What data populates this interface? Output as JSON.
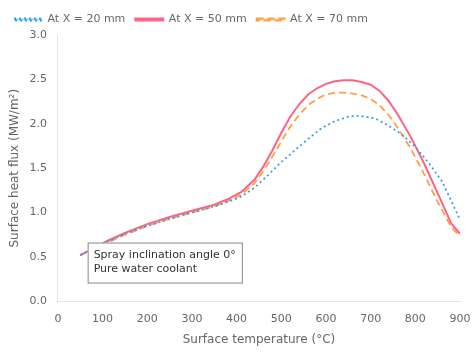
{
  "chart_data": {
    "type": "line",
    "xlabel": "Surface temperature (°C)",
    "ylabel": "Surface heat flux (MW/m²)",
    "xlim": [
      0,
      900
    ],
    "ylim": [
      0.0,
      3.0
    ],
    "xticks": [
      0,
      100,
      200,
      300,
      400,
      500,
      600,
      700,
      800,
      900
    ],
    "yticks": [
      {
        "value": 0.0,
        "label": "0.0"
      },
      {
        "value": 0.5,
        "label": "0.5"
      },
      {
        "value": 1.0,
        "label": "1.0"
      },
      {
        "value": 1.5,
        "label": "1.5"
      },
      {
        "value": 2.0,
        "label": "2.0"
      },
      {
        "value": 2.5,
        "label": "2.5"
      },
      {
        "value": 3.0,
        "label": "3.0"
      }
    ],
    "grid": false,
    "legend": "upper left",
    "annotations": [
      {
        "x": 80,
        "y": 0.28,
        "text": [
          "Spray inclination angle 0°",
          "Pure water coolant"
        ]
      }
    ],
    "series": [
      {
        "name": "At X = 20 mm",
        "line_style": "dotted",
        "x": [
          50,
          80,
          110,
          150,
          200,
          250,
          300,
          350,
          380,
          410,
          440,
          470,
          500,
          530,
          560,
          590,
          620,
          650,
          670,
          690,
          710,
          740,
          770,
          800,
          830,
          860,
          890,
          900
        ],
        "values": [
          0.52,
          0.6,
          0.67,
          0.76,
          0.85,
          0.93,
          1.0,
          1.07,
          1.12,
          1.18,
          1.28,
          1.42,
          1.57,
          1.7,
          1.83,
          1.95,
          2.03,
          2.08,
          2.09,
          2.08,
          2.06,
          1.98,
          1.88,
          1.74,
          1.56,
          1.35,
          1.03,
          0.92
        ]
      },
      {
        "name": "At X = 50 mm",
        "line_style": "solid",
        "x": [
          50,
          80,
          110,
          150,
          200,
          250,
          300,
          350,
          380,
          410,
          440,
          460,
          480,
          500,
          520,
          540,
          560,
          580,
          600,
          620,
          640,
          660,
          680,
          700,
          720,
          740,
          760,
          790,
          820,
          850,
          880,
          900
        ],
        "values": [
          0.52,
          0.6,
          0.68,
          0.77,
          0.87,
          0.95,
          1.02,
          1.09,
          1.15,
          1.23,
          1.37,
          1.52,
          1.7,
          1.9,
          2.08,
          2.22,
          2.33,
          2.4,
          2.45,
          2.48,
          2.49,
          2.49,
          2.47,
          2.44,
          2.37,
          2.26,
          2.11,
          1.85,
          1.55,
          1.22,
          0.88,
          0.76
        ]
      },
      {
        "name": "At X = 70 mm",
        "line_style": "dashed",
        "x": [
          50,
          80,
          110,
          150,
          200,
          250,
          300,
          350,
          380,
          410,
          440,
          460,
          480,
          500,
          520,
          540,
          560,
          580,
          600,
          620,
          640,
          660,
          680,
          700,
          720,
          740,
          760,
          790,
          820,
          850,
          880,
          900
        ],
        "values": [
          0.52,
          0.59,
          0.66,
          0.75,
          0.85,
          0.93,
          1.0,
          1.07,
          1.13,
          1.2,
          1.33,
          1.47,
          1.63,
          1.8,
          1.97,
          2.1,
          2.21,
          2.28,
          2.33,
          2.35,
          2.35,
          2.34,
          2.32,
          2.28,
          2.21,
          2.1,
          1.96,
          1.72,
          1.43,
          1.12,
          0.84,
          0.73
        ]
      }
    ]
  }
}
